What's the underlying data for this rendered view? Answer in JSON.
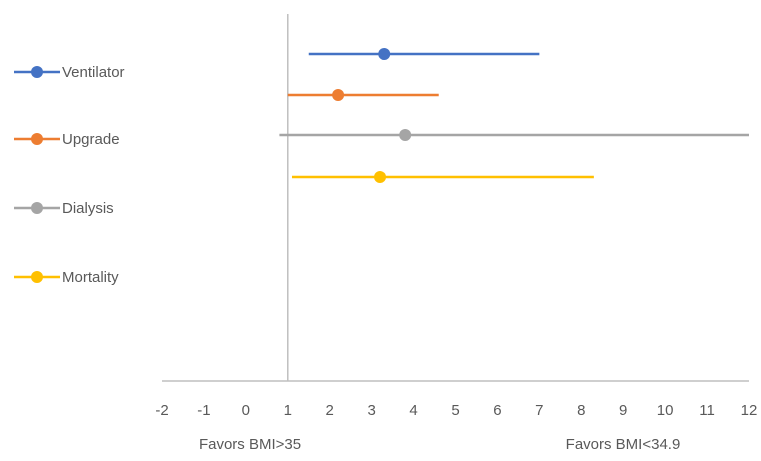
{
  "chart_data": {
    "type": "scatter",
    "title": "",
    "xlabel": "",
    "ylabel": "",
    "xlim": [
      -2,
      12
    ],
    "x_ticks": [
      -2,
      -1,
      0,
      1,
      2,
      3,
      4,
      5,
      6,
      7,
      8,
      9,
      10,
      11,
      12
    ],
    "reference_line_x": 1,
    "grid": false,
    "legend_position": "left",
    "series": [
      {
        "name": "Ventilator",
        "color": "#4472C4",
        "estimate": 3.3,
        "ci": [
          1.5,
          7.0
        ]
      },
      {
        "name": "Upgrade",
        "color": "#ED7D31",
        "estimate": 2.2,
        "ci": [
          1.0,
          4.6
        ]
      },
      {
        "name": "Dialysis",
        "color": "#A5A5A5",
        "estimate": 3.8,
        "ci": [
          0.8,
          12.0
        ]
      },
      {
        "name": "Mortality",
        "color": "#FFC000",
        "estimate": 3.2,
        "ci": [
          1.1,
          8.3
        ]
      }
    ],
    "annotations": {
      "left": "Favors BMI>35",
      "right": "Favors BMI<34.9"
    }
  }
}
